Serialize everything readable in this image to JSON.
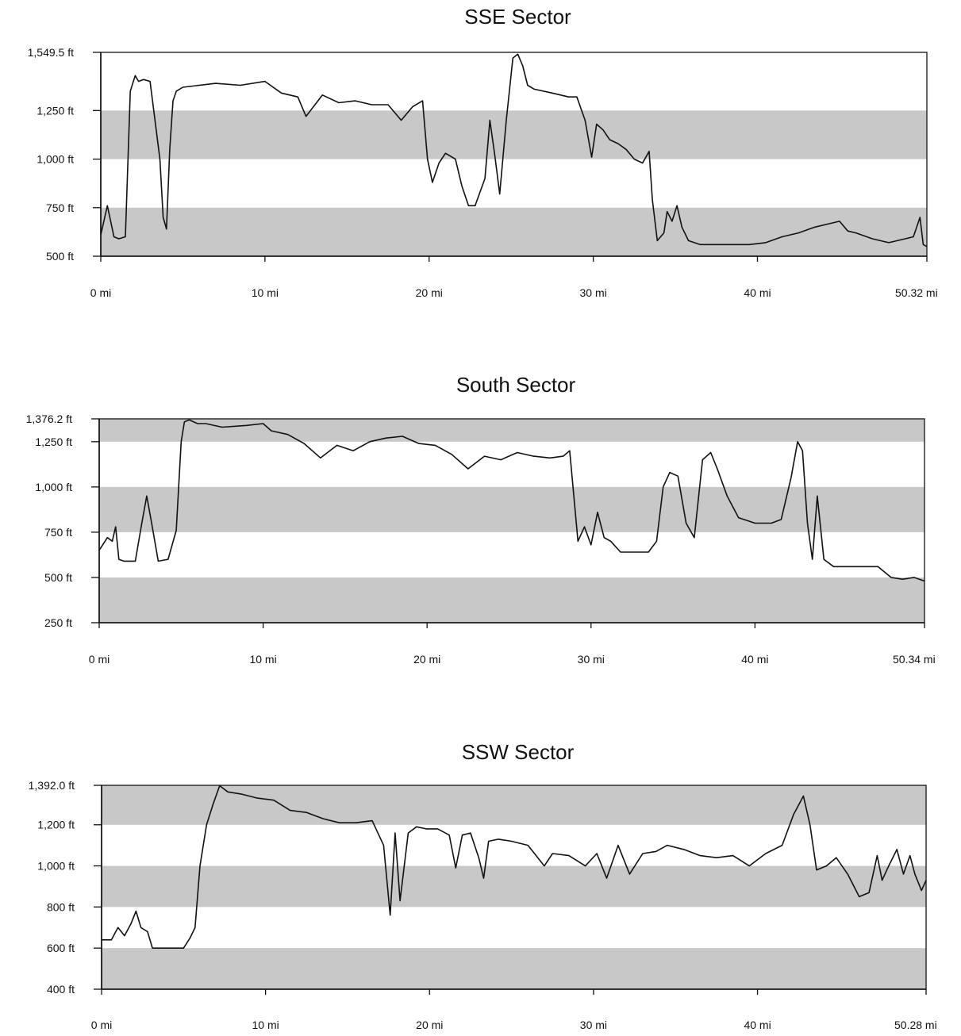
{
  "chart_data": [
    {
      "type": "line",
      "title": "SSE Sector",
      "xlabel": "",
      "ylabel": "",
      "xlim": [
        0,
        50.32
      ],
      "ylim": [
        500,
        1549.5
      ],
      "x_ticks": [
        0,
        10,
        20,
        30,
        40,
        50.32
      ],
      "x_tick_labels": [
        "0 mi",
        "10 mi",
        "20 mi",
        "30 mi",
        "40 mi",
        "50.32 mi"
      ],
      "y_ticks": [
        500,
        750,
        1000,
        1250,
        1549.5
      ],
      "y_tick_labels": [
        "500 ft",
        "750 ft",
        "1,000 ft",
        "1,250 ft",
        "1,549.5 ft"
      ],
      "bands": [
        [
          500,
          750
        ],
        [
          1000,
          1250
        ]
      ],
      "grid": false,
      "series": [
        {
          "x": [
            0,
            0.4,
            0.8,
            1.1,
            1.5,
            1.8,
            2.1,
            2.3,
            2.6,
            3.0,
            3.3,
            3.6,
            3.8,
            4.0,
            4.2,
            4.4,
            4.6,
            5.0,
            6.0,
            7.0,
            8.5,
            10.0,
            11.0,
            12.0,
            12.5,
            13.5,
            14.5,
            15.5,
            16.5,
            17.5,
            18.3,
            19.0,
            19.6,
            19.9,
            20.2,
            20.6,
            21.0,
            21.6,
            22.0,
            22.4,
            22.8,
            23.4,
            23.7,
            24.0,
            24.3,
            24.7,
            25.1,
            25.4,
            25.7,
            26.0,
            26.4,
            27.5,
            28.5,
            29.0,
            29.5,
            29.9,
            30.2,
            30.6,
            31.0,
            31.5,
            32.0,
            32.5,
            33.0,
            33.4,
            33.6,
            33.9,
            34.3,
            34.5,
            34.8,
            35.1,
            35.4,
            35.8,
            36.5,
            37.5,
            38.5,
            39.5,
            40.5,
            41.5,
            42.5,
            43.5,
            44.5,
            45.0,
            45.5,
            46.0,
            47.0,
            48.0,
            49.0,
            49.5,
            49.9,
            50.1,
            50.32
          ],
          "y": [
            610,
            760,
            600,
            590,
            600,
            1350,
            1430,
            1400,
            1410,
            1400,
            1200,
            1000,
            700,
            640,
            1050,
            1300,
            1350,
            1370,
            1380,
            1390,
            1380,
            1400,
            1340,
            1320,
            1220,
            1330,
            1290,
            1300,
            1280,
            1280,
            1200,
            1270,
            1300,
            1000,
            880,
            980,
            1030,
            1000,
            860,
            760,
            760,
            900,
            1200,
            1020,
            820,
            1200,
            1520,
            1540,
            1480,
            1380,
            1360,
            1340,
            1320,
            1320,
            1200,
            1010,
            1180,
            1150,
            1100,
            1080,
            1050,
            1000,
            980,
            1040,
            790,
            580,
            620,
            730,
            680,
            760,
            650,
            580,
            560,
            560,
            560,
            560,
            570,
            600,
            620,
            650,
            670,
            680,
            630,
            620,
            590,
            570,
            590,
            600,
            700,
            560,
            550
          ]
        }
      ]
    },
    {
      "type": "line",
      "title": "South Sector",
      "xlabel": "",
      "ylabel": "",
      "xlim": [
        0,
        50.34
      ],
      "ylim": [
        250,
        1376.2
      ],
      "x_ticks": [
        0,
        10,
        20,
        30,
        40,
        50.34
      ],
      "x_tick_labels": [
        "0 mi",
        "10 mi",
        "20 mi",
        "30 mi",
        "40 mi",
        "50.34 mi"
      ],
      "y_ticks": [
        250,
        500,
        750,
        1000,
        1250,
        1376.2
      ],
      "y_tick_labels": [
        "250 ft",
        "500 ft",
        "750 ft",
        "1,000 ft",
        "1,250 ft",
        "1,376.2 ft"
      ],
      "bands": [
        [
          250,
          500
        ],
        [
          750,
          1000
        ],
        [
          1250,
          1376.2
        ]
      ],
      "grid": false,
      "series": [
        {
          "x": [
            0,
            0.5,
            0.8,
            1.0,
            1.2,
            1.5,
            2.2,
            2.6,
            2.9,
            3.2,
            3.6,
            4.2,
            4.7,
            5.0,
            5.2,
            5.5,
            6.0,
            6.5,
            7.5,
            9.0,
            10.0,
            10.5,
            11.5,
            12.5,
            13.5,
            14.5,
            15.5,
            16.5,
            17.5,
            18.5,
            19.5,
            20.5,
            21.5,
            22.5,
            23.5,
            24.5,
            25.5,
            26.5,
            27.5,
            28.3,
            28.7,
            29.2,
            29.6,
            30.0,
            30.4,
            30.8,
            31.2,
            31.8,
            32.5,
            33.5,
            34.0,
            34.4,
            34.8,
            35.3,
            35.8,
            36.3,
            36.8,
            37.3,
            37.7,
            38.3,
            39.0,
            40.0,
            41.0,
            41.6,
            42.2,
            42.6,
            42.9,
            43.2,
            43.5,
            43.8,
            44.2,
            44.8,
            45.5,
            46.5,
            47.5,
            48.3,
            49.0,
            49.7,
            50.34
          ],
          "y": [
            650,
            720,
            700,
            780,
            600,
            590,
            590,
            800,
            950,
            800,
            590,
            600,
            760,
            1250,
            1360,
            1370,
            1350,
            1350,
            1330,
            1340,
            1350,
            1310,
            1290,
            1240,
            1160,
            1230,
            1200,
            1250,
            1270,
            1280,
            1240,
            1230,
            1180,
            1100,
            1170,
            1150,
            1190,
            1170,
            1160,
            1170,
            1200,
            700,
            780,
            680,
            860,
            720,
            700,
            640,
            640,
            640,
            700,
            1000,
            1080,
            1060,
            800,
            720,
            1150,
            1190,
            1100,
            950,
            830,
            800,
            800,
            820,
            1050,
            1250,
            1200,
            800,
            600,
            950,
            600,
            560,
            560,
            560,
            560,
            500,
            490,
            500,
            480
          ]
        }
      ]
    },
    {
      "type": "line",
      "title": "SSW Sector",
      "xlabel": "",
      "ylabel": "",
      "xlim": [
        0,
        50.28
      ],
      "ylim": [
        400,
        1392.0
      ],
      "x_ticks": [
        0,
        10,
        20,
        30,
        40,
        50.28
      ],
      "x_tick_labels": [
        "0 mi",
        "10 mi",
        "20 mi",
        "30 mi",
        "40 mi",
        "50.28 mi"
      ],
      "y_ticks": [
        400,
        600,
        800,
        1000,
        1200,
        1392.0
      ],
      "y_tick_labels": [
        "400 ft",
        "600 ft",
        "800 ft",
        "1,000 ft",
        "1,200 ft",
        "1,392.0 ft"
      ],
      "bands": [
        [
          400,
          600
        ],
        [
          800,
          1000
        ],
        [
          1200,
          1392.0
        ]
      ],
      "grid": false,
      "series": [
        {
          "x": [
            0,
            0.6,
            1.0,
            1.4,
            1.8,
            2.1,
            2.4,
            2.8,
            3.1,
            3.4,
            4.0,
            5.0,
            5.4,
            5.7,
            6.0,
            6.4,
            6.8,
            7.2,
            7.7,
            8.5,
            9.5,
            10.5,
            11.5,
            12.5,
            13.5,
            14.5,
            15.5,
            16.5,
            17.2,
            17.6,
            17.9,
            18.2,
            18.7,
            19.2,
            19.8,
            20.5,
            21.2,
            21.6,
            22.0,
            22.5,
            23.0,
            23.3,
            23.6,
            24.2,
            25.0,
            26.0,
            27.0,
            27.5,
            28.5,
            29.5,
            30.2,
            30.8,
            31.5,
            32.2,
            33.0,
            33.8,
            34.5,
            35.5,
            36.5,
            37.5,
            38.5,
            39.5,
            40.5,
            41.5,
            42.2,
            42.8,
            43.2,
            43.6,
            44.2,
            44.8,
            45.5,
            46.2,
            46.8,
            47.3,
            47.6,
            48.0,
            48.5,
            48.9,
            49.3,
            49.6,
            50.0,
            50.28
          ],
          "y": [
            640,
            640,
            700,
            660,
            720,
            780,
            700,
            680,
            600,
            600,
            600,
            600,
            650,
            700,
            1000,
            1200,
            1300,
            1390,
            1360,
            1350,
            1330,
            1320,
            1270,
            1260,
            1230,
            1210,
            1210,
            1220,
            1100,
            760,
            1160,
            830,
            1160,
            1190,
            1180,
            1180,
            1150,
            990,
            1150,
            1160,
            1040,
            940,
            1120,
            1130,
            1120,
            1100,
            1000,
            1060,
            1050,
            1000,
            1060,
            940,
            1100,
            960,
            1060,
            1070,
            1100,
            1080,
            1050,
            1040,
            1050,
            1000,
            1060,
            1100,
            1250,
            1340,
            1200,
            980,
            1000,
            1040,
            960,
            850,
            870,
            1050,
            930,
            1000,
            1080,
            960,
            1050,
            960,
            880,
            930
          ]
        }
      ]
    }
  ]
}
